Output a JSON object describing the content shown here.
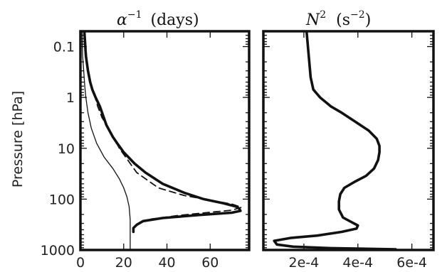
{
  "chart_data": [
    {
      "type": "line",
      "title_main": "α",
      "title_sup": "−1",
      "title_unit": "(days)",
      "ylabel": "Pressure [hPa]",
      "yscale": "log",
      "ylim": [
        1000,
        0.05
      ],
      "xlim": [
        0,
        78
      ],
      "xticks": [
        0,
        20,
        40,
        60
      ],
      "xtick_labels": [
        "0",
        "20",
        "40",
        "60"
      ],
      "yticks": [
        0.1,
        1,
        10,
        100,
        1000
      ],
      "ytick_labels": [
        "0.1",
        "1",
        "10",
        "100",
        "1000"
      ],
      "grid": false,
      "series": [
        {
          "style": "thick",
          "x": [
            1.8,
            2.5,
            3.5,
            4.5,
            5.5,
            7,
            9,
            12,
            14,
            15,
            17,
            20,
            25,
            30,
            38,
            48,
            57,
            66,
            72,
            73.5,
            74,
            70,
            55,
            38,
            29,
            26,
            24.5,
            24.5,
            24.5
          ],
          "y": [
            0.05,
            0.15,
            0.3,
            0.5,
            0.7,
            1.0,
            1.5,
            3.5,
            5,
            6,
            8,
            12,
            20,
            30,
            50,
            75,
            100,
            120,
            140,
            155,
            170,
            185,
            205,
            235,
            270,
            320,
            370,
            410,
            440
          ]
        },
        {
          "style": "dashed",
          "x": [
            2.0,
            3,
            4,
            5,
            6.5,
            8,
            10,
            13,
            18,
            26,
            36,
            48,
            60,
            70,
            74.5,
            70,
            58,
            45,
            33,
            27,
            25,
            24.5
          ],
          "y": [
            0.05,
            0.2,
            0.4,
            0.6,
            0.9,
            1.5,
            2.5,
            4,
            10,
            30,
            60,
            85,
            105,
            125,
            145,
            165,
            185,
            210,
            245,
            290,
            340,
            380
          ]
        },
        {
          "style": "thin",
          "x": [
            0.8,
            1,
            1.5,
            2,
            2.5,
            3.5,
            5,
            7.5,
            11,
            15,
            18,
            20,
            21.5,
            22.5,
            23,
            23,
            23
          ],
          "y": [
            0.05,
            0.15,
            0.3,
            0.6,
            1,
            2,
            4,
            8,
            15,
            25,
            40,
            60,
            90,
            140,
            250,
            500,
            1000
          ]
        }
      ]
    },
    {
      "type": "line",
      "title_main": "N",
      "title_sup": "2",
      "title_unit": "(s",
      "title_unit_sup": "−2",
      "title_unit_close": ")",
      "yscale": "log",
      "ylim": [
        1000,
        0.05
      ],
      "xlim": [
        5e-05,
        0.00068
      ],
      "xticks": [
        0.0002,
        0.0004,
        0.0006
      ],
      "xtick_labels": [
        "2e-4",
        "4e-4",
        "6e-4"
      ],
      "grid": false,
      "series": [
        {
          "style": "thick",
          "x": [
            0.00021,
            0.000215,
            0.00022,
            0.000225,
            0.000235,
            0.00026,
            0.0003,
            0.00034,
            0.00039,
            0.00044,
            0.00047,
            0.00048,
            0.00048,
            0.000475,
            0.00046,
            0.00043,
            0.00039,
            0.00035,
            0.000335,
            0.00033,
            0.00033,
            0.000345,
            0.000375,
            0.0004,
            0.000395,
            0.00034,
            0.00025,
            0.00015,
            9e-05,
            0.0001,
            0.00016,
            0.0003,
            0.00045,
            0.00054
          ],
          "y": [
            0.05,
            0.1,
            0.2,
            0.4,
            0.7,
            1.0,
            1.5,
            2.0,
            3.0,
            4.5,
            6.5,
            9.0,
            12,
            17,
            25,
            35,
            45,
            60,
            80,
            110,
            160,
            230,
            280,
            330,
            380,
            440,
            520,
            580,
            660,
            780,
            860,
            920,
            950,
            970
          ]
        }
      ]
    }
  ]
}
